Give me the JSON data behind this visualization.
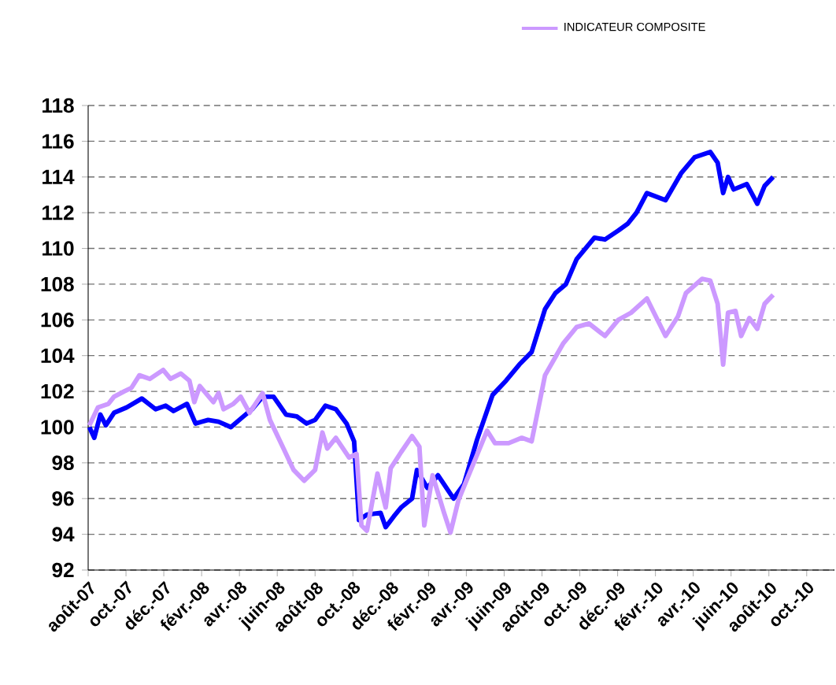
{
  "chart_data": {
    "type": "line",
    "legend": "top",
    "grid": "y",
    "marker": "none",
    "line_style": "solid",
    "xlim": [
      "2007-08-01",
      "2010-11-15"
    ],
    "xticks": [
      {
        "value": "2007-08-01",
        "label": "août-07"
      },
      {
        "value": "2007-10-01",
        "label": "oct.-07"
      },
      {
        "value": "2007-12-01",
        "label": "déc.-07"
      },
      {
        "value": "2008-02-01",
        "label": "févr.-08"
      },
      {
        "value": "2008-04-01",
        "label": "avr.-08"
      },
      {
        "value": "2008-06-01",
        "label": "juin-08"
      },
      {
        "value": "2008-08-01",
        "label": "août-08"
      },
      {
        "value": "2008-10-01",
        "label": "oct.-08"
      },
      {
        "value": "2008-12-01",
        "label": "déc.-08"
      },
      {
        "value": "2009-02-01",
        "label": "févr.-09"
      },
      {
        "value": "2009-04-01",
        "label": "avr.-09"
      },
      {
        "value": "2009-06-01",
        "label": "juin-09"
      },
      {
        "value": "2009-08-01",
        "label": "août-09"
      },
      {
        "value": "2009-10-01",
        "label": "oct.-09"
      },
      {
        "value": "2009-12-01",
        "label": "déc.-09"
      },
      {
        "value": "2010-02-01",
        "label": "févr.-10"
      },
      {
        "value": "2010-04-01",
        "label": "avr.-10"
      },
      {
        "value": "2010-06-01",
        "label": "juin-10"
      },
      {
        "value": "2010-08-01",
        "label": "août-10"
      },
      {
        "value": "2010-10-01",
        "label": "oct.-10"
      }
    ],
    "ylim": [
      92,
      118
    ],
    "yticks": [
      92,
      94,
      96,
      98,
      100,
      102,
      104,
      106,
      108,
      110,
      112,
      114,
      116,
      118
    ],
    "series": [
      {
        "color": "#0000ff",
        "x": [
          "2007-08-03",
          "2007-08-11",
          "2007-08-21",
          "2007-08-30",
          "2007-09-12",
          "2007-10-02",
          "2007-10-27",
          "2007-11-18",
          "2007-12-04",
          "2007-12-17",
          "2008-01-08",
          "2008-01-22",
          "2008-02-11",
          "2008-02-27",
          "2008-03-18",
          "2008-04-04",
          "2008-04-21",
          "2008-05-08",
          "2008-05-26",
          "2008-06-15",
          "2008-07-02",
          "2008-07-18",
          "2008-08-01",
          "2008-08-18",
          "2008-09-04",
          "2008-09-21",
          "2008-10-03",
          "2008-10-11",
          "2008-10-24",
          "2008-11-15",
          "2008-11-23",
          "2008-12-06",
          "2008-12-18",
          "2009-01-05",
          "2009-01-13",
          "2009-01-30",
          "2009-02-15",
          "2009-03-11",
          "2009-03-28",
          "2009-04-18",
          "2009-05-13",
          "2009-06-04",
          "2009-06-25",
          "2009-07-15",
          "2009-08-06",
          "2009-08-23",
          "2009-09-09",
          "2009-09-26",
          "2009-10-25",
          "2009-11-11",
          "2009-12-02",
          "2009-12-18",
          "2010-01-01",
          "2010-01-18",
          "2010-02-16",
          "2010-03-12",
          "2010-04-03",
          "2010-04-28",
          "2010-05-10",
          "2010-05-19",
          "2010-05-27",
          "2010-06-05",
          "2010-06-26",
          "2010-07-13",
          "2010-07-25",
          "2010-08-08"
        ],
        "values": [
          100.0,
          99.4,
          100.7,
          100.1,
          100.8,
          101.1,
          101.6,
          101.0,
          101.2,
          100.9,
          101.3,
          100.2,
          100.4,
          100.3,
          100.0,
          100.5,
          101.0,
          101.7,
          101.7,
          100.7,
          100.6,
          100.2,
          100.4,
          101.2,
          101.0,
          100.2,
          99.2,
          94.8,
          95.1,
          95.2,
          94.4,
          95.0,
          95.5,
          96.0,
          97.6,
          96.6,
          97.3,
          96.0,
          96.8,
          99.3,
          101.8,
          102.6,
          103.5,
          104.2,
          106.6,
          107.5,
          108.0,
          109.4,
          110.6,
          110.5,
          111.0,
          111.4,
          112.0,
          113.1,
          112.7,
          114.2,
          115.1,
          115.4,
          114.8,
          113.1,
          114.0,
          113.3,
          113.6,
          112.5,
          113.5,
          114.0
        ]
      },
      {
        "name": "INDICATEUR  COMPOSITE",
        "color": "#cc99ff",
        "x": [
          "2007-08-03",
          "2007-08-17",
          "2007-09-03",
          "2007-09-12",
          "2007-09-28",
          "2007-10-10",
          "2007-10-23",
          "2007-11-09",
          "2007-11-30",
          "2007-12-12",
          "2007-12-29",
          "2008-01-12",
          "2008-01-20",
          "2008-01-29",
          "2008-02-19",
          "2008-02-27",
          "2008-03-06",
          "2008-03-22",
          "2008-04-03",
          "2008-04-17",
          "2008-05-08",
          "2008-05-20",
          "2008-06-11",
          "2008-06-27",
          "2008-07-14",
          "2008-08-01",
          "2008-08-13",
          "2008-08-21",
          "2008-09-04",
          "2008-09-25",
          "2008-10-07",
          "2008-10-15",
          "2008-10-24",
          "2008-11-10",
          "2008-11-23",
          "2008-12-01",
          "2008-12-18",
          "2009-01-05",
          "2009-01-17",
          "2009-01-25",
          "2009-02-07",
          "2009-02-24",
          "2009-03-06",
          "2009-03-19",
          "2009-04-01",
          "2009-05-04",
          "2009-05-17",
          "2009-06-08",
          "2009-06-29",
          "2009-07-15",
          "2009-08-06",
          "2009-09-05",
          "2009-09-26",
          "2009-10-16",
          "2009-11-11",
          "2009-12-02",
          "2009-12-23",
          "2010-01-18",
          "2010-02-16",
          "2010-03-07",
          "2010-03-20",
          "2010-04-15",
          "2010-04-28",
          "2010-05-10",
          "2010-05-19",
          "2010-05-27",
          "2010-06-08",
          "2010-06-17",
          "2010-06-30",
          "2010-07-13",
          "2010-07-25",
          "2010-08-08"
        ],
        "values": [
          100.1,
          101.1,
          101.3,
          101.7,
          102.0,
          102.2,
          102.9,
          102.7,
          103.2,
          102.7,
          103.0,
          102.6,
          101.4,
          102.3,
          101.4,
          101.9,
          101.0,
          101.3,
          101.7,
          100.8,
          101.9,
          100.4,
          98.8,
          97.6,
          97.0,
          97.6,
          99.7,
          98.8,
          99.4,
          98.3,
          98.5,
          94.5,
          94.2,
          97.4,
          95.5,
          97.7,
          98.6,
          99.5,
          98.9,
          94.5,
          97.3,
          95.2,
          94.1,
          95.9,
          97.0,
          99.8,
          99.1,
          99.1,
          99.4,
          99.2,
          102.9,
          104.7,
          105.6,
          105.8,
          105.1,
          106.0,
          106.4,
          107.2,
          105.1,
          106.2,
          107.5,
          108.3,
          108.2,
          106.9,
          103.5,
          106.4,
          106.5,
          105.1,
          106.1,
          105.5,
          106.9,
          107.4
        ]
      }
    ]
  }
}
